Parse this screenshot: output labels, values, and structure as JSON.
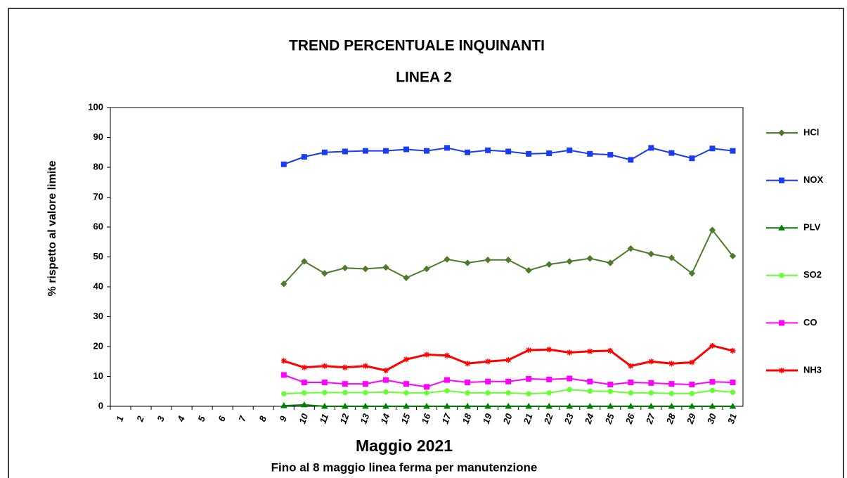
{
  "chart_data": {
    "type": "line",
    "title": "TREND PERCENTUALE  INQUINANTI",
    "subtitle": "LINEA 2",
    "y_label": "% rispetto al valore limite",
    "x_label": "Maggio 2021",
    "annotation": "Fino al 8 maggio linea ferma per manutenzione",
    "categories": [
      "1",
      "2",
      "3",
      "4",
      "5",
      "6",
      "7",
      "8",
      "9",
      "10",
      "11",
      "12",
      "13",
      "14",
      "15",
      "16",
      "17",
      "18",
      "19",
      "20",
      "21",
      "22",
      "23",
      "24",
      "25",
      "26",
      "27",
      "28",
      "29",
      "30",
      "31"
    ],
    "ylim": [
      0,
      100
    ],
    "yticks": [
      0,
      10,
      20,
      30,
      40,
      50,
      60,
      70,
      80,
      90,
      100
    ],
    "grid": false,
    "legend": "right",
    "series": [
      {
        "name": "HCl",
        "color": "#4e7a2c",
        "marker": "diamond",
        "values": [
          null,
          null,
          null,
          null,
          null,
          null,
          null,
          null,
          41,
          48.5,
          44.5,
          46.3,
          46,
          46.5,
          43,
          46,
          49.2,
          48,
          49,
          49,
          45.5,
          47.5,
          48.5,
          49.5,
          48,
          52.8,
          51,
          49.7,
          44.5,
          59,
          50.3
        ]
      },
      {
        "name": "NOX",
        "color": "#1a3cf0",
        "marker": "square",
        "values": [
          null,
          null,
          null,
          null,
          null,
          null,
          null,
          null,
          81,
          83.5,
          85,
          85.3,
          85.5,
          85.5,
          86,
          85.5,
          86.5,
          85,
          85.7,
          85.3,
          84.5,
          84.7,
          85.7,
          84.5,
          84.2,
          82.5,
          86.5,
          84.8,
          83,
          86.3,
          85.5
        ]
      },
      {
        "name": "PLV",
        "color": "#008000",
        "marker": "triangle",
        "values": [
          null,
          null,
          null,
          null,
          null,
          null,
          null,
          null,
          0.2,
          0.5,
          0,
          0,
          0,
          0,
          0,
          0,
          0,
          0,
          0,
          0,
          0,
          0,
          0,
          0,
          0,
          0,
          0,
          0,
          0,
          0,
          0
        ]
      },
      {
        "name": "SO2",
        "color": "#66ff33",
        "marker": "circle",
        "values": [
          null,
          null,
          null,
          null,
          null,
          null,
          null,
          null,
          4.2,
          4.5,
          4.6,
          4.6,
          4.6,
          4.8,
          4.5,
          4.5,
          5.2,
          4.5,
          4.5,
          4.5,
          4.2,
          4.5,
          5.6,
          5.1,
          5,
          4.5,
          4.5,
          4.3,
          4.3,
          5.3,
          4.7
        ]
      },
      {
        "name": "CO",
        "color": "#ff00ff",
        "marker": "square",
        "values": [
          null,
          null,
          null,
          null,
          null,
          null,
          null,
          null,
          10.5,
          8,
          8,
          7.5,
          7.5,
          8.8,
          7.5,
          6.5,
          8.8,
          8,
          8.3,
          8.3,
          9.2,
          9,
          9.3,
          8.3,
          7.3,
          8,
          7.8,
          7.5,
          7.3,
          8.2,
          8
        ]
      },
      {
        "name": "NH3",
        "color": "#ff0000",
        "marker": "star",
        "values": [
          null,
          null,
          null,
          null,
          null,
          null,
          null,
          null,
          15.2,
          13,
          13.5,
          13,
          13.5,
          12,
          15.7,
          17.3,
          17,
          14.3,
          15,
          15.5,
          18.8,
          19,
          18,
          18.4,
          18.6,
          13.5,
          15,
          14.3,
          14.7,
          20.3,
          18.6
        ]
      }
    ]
  }
}
